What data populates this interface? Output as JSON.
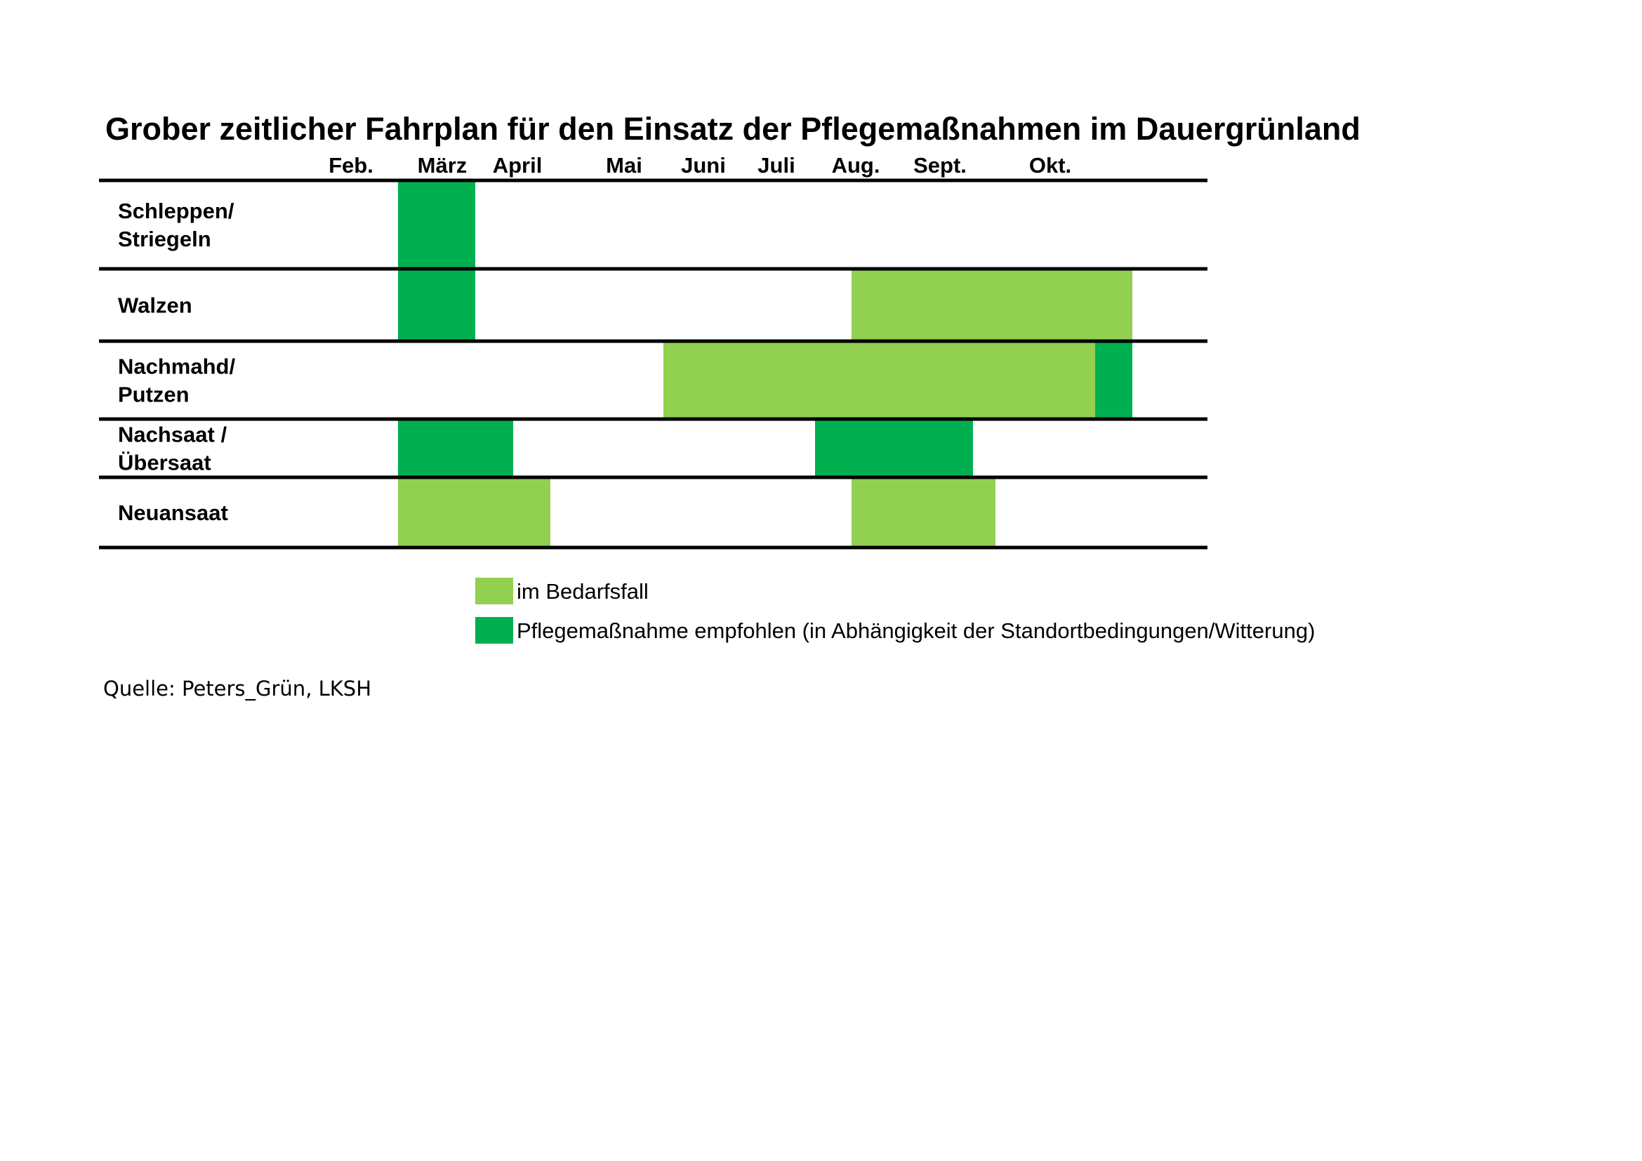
{
  "chart_data": {
    "type": "gantt",
    "title": "Grober zeitlicher Fahrplan für den Einsatz der Pflegemaßnahmen im Dauergrünland",
    "months": [
      "Feb.",
      "März",
      "April",
      "Mai",
      "Juni",
      "Juli",
      "Aug.",
      "Sept.",
      "Okt."
    ],
    "colors": {
      "im_bedarfsfall": "#92d050",
      "empfohlen": "#00b050",
      "grid": "#000000"
    },
    "legend": [
      {
        "key": "im_bedarfsfall",
        "label": "im Bedarfsfall"
      },
      {
        "key": "empfohlen",
        "label": "Pflegemaßnahme empfohlen (in Abhängigkeit der Standortbedingungen/Witterung)"
      }
    ],
    "rows": [
      {
        "label_lines": [
          "Schleppen/",
          "Striegeln"
        ],
        "bars": [
          {
            "start": "März (Anfang)",
            "end": "März (Ende)",
            "kind": "empfohlen"
          }
        ]
      },
      {
        "label_lines": [
          "Walzen"
        ],
        "bars": [
          {
            "start": "März (Anfang)",
            "end": "März (Ende)",
            "kind": "empfohlen"
          },
          {
            "start": "Aug. (Mitte)",
            "end": "Okt. (Ende)",
            "kind": "im_bedarfsfall"
          }
        ]
      },
      {
        "label_lines": [
          "Nachmahd/",
          "Putzen"
        ],
        "bars": [
          {
            "start": "Juni (Anfang)",
            "end": "Okt. (Mitte)",
            "kind": "im_bedarfsfall"
          },
          {
            "start": "Okt. (Mitte)",
            "end": "Okt. (Ende)",
            "kind": "empfohlen"
          }
        ]
      },
      {
        "label_lines": [
          "Nachsaat /",
          "Übersaat"
        ],
        "bars": [
          {
            "start": "März (Anfang)",
            "end": "April (Mitte)",
            "kind": "empfohlen"
          },
          {
            "start": "Aug. (Anfang)",
            "end": "Sept. (Ende)",
            "kind": "empfohlen"
          }
        ]
      },
      {
        "label_lines": [
          "Neuansaat"
        ],
        "bars": [
          {
            "start": "März (Anfang)",
            "end": "April (Ende)",
            "kind": "im_bedarfsfall"
          },
          {
            "start": "Aug. (Mitte)",
            "end": "Sept. (Ende)",
            "kind": "im_bedarfsfall"
          }
        ]
      }
    ]
  },
  "source_note": "Quelle: Peters_Grün, LKSH"
}
